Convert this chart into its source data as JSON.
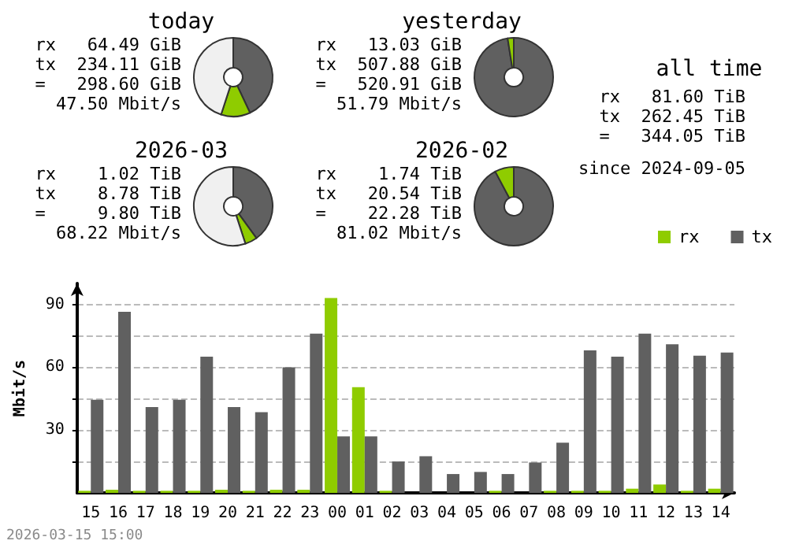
{
  "chart_data": [
    {
      "type": "donut",
      "title": "today",
      "categories": [
        null,
        null,
        null
      ],
      "values": [
        43,
        12,
        45
      ],
      "colors": [
        "#606060",
        "#8fcc00",
        "#f0f0f0"
      ],
      "annotations": [
        "rx   64.49 GiB",
        "tx  234.11 GiB",
        "=   298.60 GiB",
        "47.50 Mbit/s"
      ]
    },
    {
      "type": "donut",
      "title": "yesterday",
      "categories": [
        null,
        null
      ],
      "values": [
        97.5,
        2.5
      ],
      "colors": [
        "#606060",
        "#8fcc00"
      ],
      "annotations": [
        "rx   13.03 GiB",
        "tx  507.88 GiB",
        "=   520.91 GiB",
        "51.79 Mbit/s"
      ]
    },
    {
      "type": "other",
      "title": "all time",
      "annotations": [
        "rx   81.60 TiB",
        "tx  262.45 TiB",
        "=   344.05 TiB",
        "since 2024-09-05"
      ]
    },
    {
      "type": "donut",
      "title": "2026-03",
      "categories": [
        null,
        null,
        null
      ],
      "values": [
        40,
        5,
        55
      ],
      "colors": [
        "#606060",
        "#8fcc00",
        "#f0f0f0"
      ],
      "annotations": [
        "rx    1.02 TiB",
        "tx    8.78 TiB",
        "=     9.80 TiB",
        "68.22 Mbit/s"
      ]
    },
    {
      "type": "donut",
      "title": "2026-02",
      "categories": [
        null,
        null
      ],
      "values": [
        92.2,
        7.8
      ],
      "colors": [
        "#606060",
        "#8fcc00"
      ],
      "annotations": [
        "rx    1.74 TiB",
        "tx   20.54 TiB",
        "=    22.28 TiB",
        "81.02 Mbit/s"
      ]
    },
    {
      "type": "bar",
      "ylabel": "Mbit/s",
      "categories": [
        "15",
        "16",
        "17",
        "18",
        "19",
        "20",
        "21",
        "22",
        "23",
        "00",
        "01",
        "02",
        "03",
        "04",
        "05",
        "06",
        "07",
        "08",
        "09",
        "10",
        "11",
        "12",
        "13",
        "14"
      ],
      "series": [
        {
          "name": "rx",
          "color": "#8fcc00",
          "values": [
            1,
            1.5,
            1,
            1,
            1,
            1.5,
            1,
            1.5,
            1.5,
            93,
            50.5,
            1,
            0,
            0,
            0,
            1,
            0,
            1,
            1,
            1,
            2,
            4,
            1,
            2
          ]
        },
        {
          "name": "tx",
          "color": "#606060",
          "values": [
            44.5,
            86.5,
            41,
            44.5,
            65,
            41,
            38.5,
            60,
            76,
            27,
            27,
            15,
            17.5,
            9,
            10,
            9,
            14.5,
            24,
            68,
            65,
            76,
            71,
            65.5,
            67
          ]
        }
      ],
      "ylim": [
        0,
        100
      ],
      "yticks": [
        {
          "value": 15,
          "label": null
        },
        30,
        {
          "value": 45,
          "label": null
        },
        60,
        {
          "value": 75,
          "label": null
        },
        90
      ],
      "grid": "y",
      "legend": "top right",
      "annotations": [
        "2026-03-15 15:00"
      ]
    }
  ]
}
